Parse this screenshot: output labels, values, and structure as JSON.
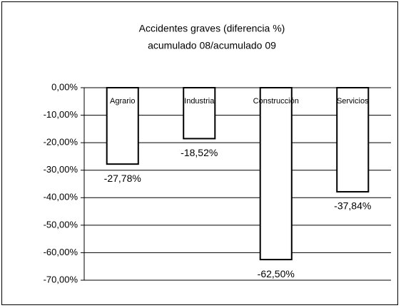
{
  "chart_data": {
    "type": "bar",
    "title": "Accidentes graves (diferencia %)",
    "subtitle": "acumulado 08/acumulado 09",
    "categories": [
      "Agrario",
      "Industria",
      "Construcción",
      "Servicios"
    ],
    "values": [
      -27.78,
      -18.52,
      -62.5,
      -37.84
    ],
    "value_labels": [
      "-27,78%",
      "-18,52%",
      "-62,50%",
      "-37,84%"
    ],
    "color": "#ffffff",
    "ylim": [
      -70,
      0
    ],
    "yticks": [
      {
        "value": 0,
        "label": "0,00%"
      },
      {
        "value": -10,
        "label": "-10,00%"
      },
      {
        "value": -20,
        "label": "-20,00%"
      },
      {
        "value": -30,
        "label": "-30,00%"
      },
      {
        "value": -40,
        "label": "-40,00%"
      },
      {
        "value": -50,
        "label": "-50,00%"
      },
      {
        "value": -60,
        "label": "-60,00%"
      },
      {
        "value": -70,
        "label": "-70,00%"
      }
    ],
    "grid": true
  }
}
